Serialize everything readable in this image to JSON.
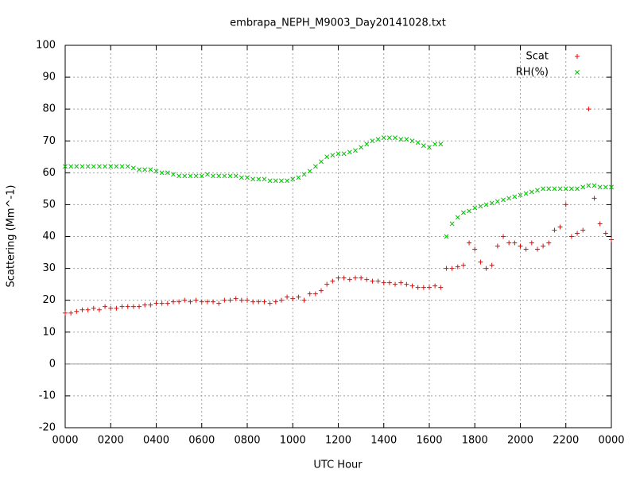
{
  "chart_data": {
    "type": "scatter",
    "title": "embrapa_NEPH_M9003_Day20141028.txt",
    "xlabel": "UTC Hour",
    "ylabel": "Scattering (Mm^-1)",
    "xlim": [
      0,
      24
    ],
    "ylim": [
      -20,
      100
    ],
    "xticks": [
      {
        "value": 0,
        "label": "0000"
      },
      {
        "value": 2,
        "label": "0200"
      },
      {
        "value": 4,
        "label": "0400"
      },
      {
        "value": 6,
        "label": "0600"
      },
      {
        "value": 8,
        "label": "0800"
      },
      {
        "value": 10,
        "label": "1000"
      },
      {
        "value": 12,
        "label": "1200"
      },
      {
        "value": 14,
        "label": "1400"
      },
      {
        "value": 16,
        "label": "1600"
      },
      {
        "value": 18,
        "label": "1800"
      },
      {
        "value": 20,
        "label": "2000"
      },
      {
        "value": 22,
        "label": "2200"
      },
      {
        "value": 24,
        "label": "0000"
      }
    ],
    "yticks": [
      -20,
      -10,
      0,
      10,
      20,
      30,
      40,
      50,
      60,
      70,
      80,
      90,
      100
    ],
    "grid": true,
    "legend": "top-right",
    "x": [
      0,
      0.25,
      0.5,
      0.75,
      1,
      1.25,
      1.5,
      1.75,
      2,
      2.25,
      2.5,
      2.75,
      3,
      3.25,
      3.5,
      3.75,
      4,
      4.25,
      4.5,
      4.75,
      5,
      5.25,
      5.5,
      5.75,
      6,
      6.25,
      6.5,
      6.75,
      7,
      7.25,
      7.5,
      7.75,
      8,
      8.25,
      8.5,
      8.75,
      9,
      9.25,
      9.5,
      9.75,
      10,
      10.25,
      10.5,
      10.75,
      11,
      11.25,
      11.5,
      11.75,
      12,
      12.25,
      12.5,
      12.75,
      13,
      13.25,
      13.5,
      13.75,
      14,
      14.25,
      14.5,
      14.75,
      15,
      15.25,
      15.5,
      15.75,
      16,
      16.25,
      16.5,
      16.75,
      17,
      17.25,
      17.5,
      17.75,
      18,
      18.25,
      18.5,
      18.75,
      19,
      19.25,
      19.5,
      19.75,
      20,
      20.25,
      20.5,
      20.75,
      21,
      21.25,
      21.5,
      21.75,
      22,
      22.25,
      22.5,
      22.75,
      23,
      23.25,
      23.5,
      23.75,
      24
    ],
    "series": [
      {
        "name": "Scat",
        "color": "#ff0000",
        "marker": "plus",
        "values": [
          16,
          16,
          16.5,
          17,
          17,
          17.5,
          17,
          18,
          17.5,
          17.5,
          18,
          18,
          18,
          18,
          18.5,
          18.5,
          19,
          19,
          19,
          19.5,
          19.5,
          20,
          19.5,
          20,
          19.5,
          19.5,
          19.5,
          19,
          20,
          20,
          20.5,
          20,
          20,
          19.5,
          19.5,
          19.5,
          19,
          19.5,
          20,
          21,
          20.5,
          21,
          20,
          22,
          22,
          23,
          25,
          26,
          27,
          27,
          26.5,
          27,
          27,
          26.5,
          26,
          26,
          25.5,
          25.5,
          25,
          25.5,
          25,
          24.5,
          24,
          24,
          24,
          24.5,
          24,
          30,
          30,
          30.5,
          31,
          38,
          36,
          32,
          30,
          31,
          37,
          40,
          38,
          38,
          37,
          36,
          38,
          36,
          37,
          38,
          42,
          43,
          50,
          40,
          41,
          42,
          80,
          52,
          44,
          41,
          39
        ]
      },
      {
        "name": "RH(%)",
        "color": "#00c000",
        "marker": "cross",
        "values": [
          62,
          62,
          62,
          62,
          62,
          62,
          62,
          62,
          62,
          62,
          62,
          62,
          61.5,
          61,
          61,
          61,
          60.5,
          60,
          60,
          59.5,
          59,
          59,
          59,
          59,
          59,
          59.5,
          59,
          59,
          59,
          59,
          59,
          58.5,
          58.5,
          58,
          58,
          58,
          57.5,
          57.5,
          57.5,
          57.5,
          58,
          58.5,
          59.5,
          60.5,
          62,
          63.5,
          65,
          65.5,
          66,
          66,
          66.5,
          67,
          68,
          69,
          70,
          70.5,
          71,
          71,
          71,
          70.5,
          70.5,
          70,
          69.5,
          68.5,
          68,
          69,
          69,
          40,
          44,
          46,
          47.5,
          48,
          49,
          49.5,
          50,
          50.5,
          51,
          51.5,
          52,
          52.5,
          53,
          53.5,
          54,
          54.5,
          55,
          55,
          55,
          55,
          55,
          55,
          55,
          55.5,
          56,
          56,
          55.5,
          55.5,
          55.5
        ]
      }
    ]
  }
}
